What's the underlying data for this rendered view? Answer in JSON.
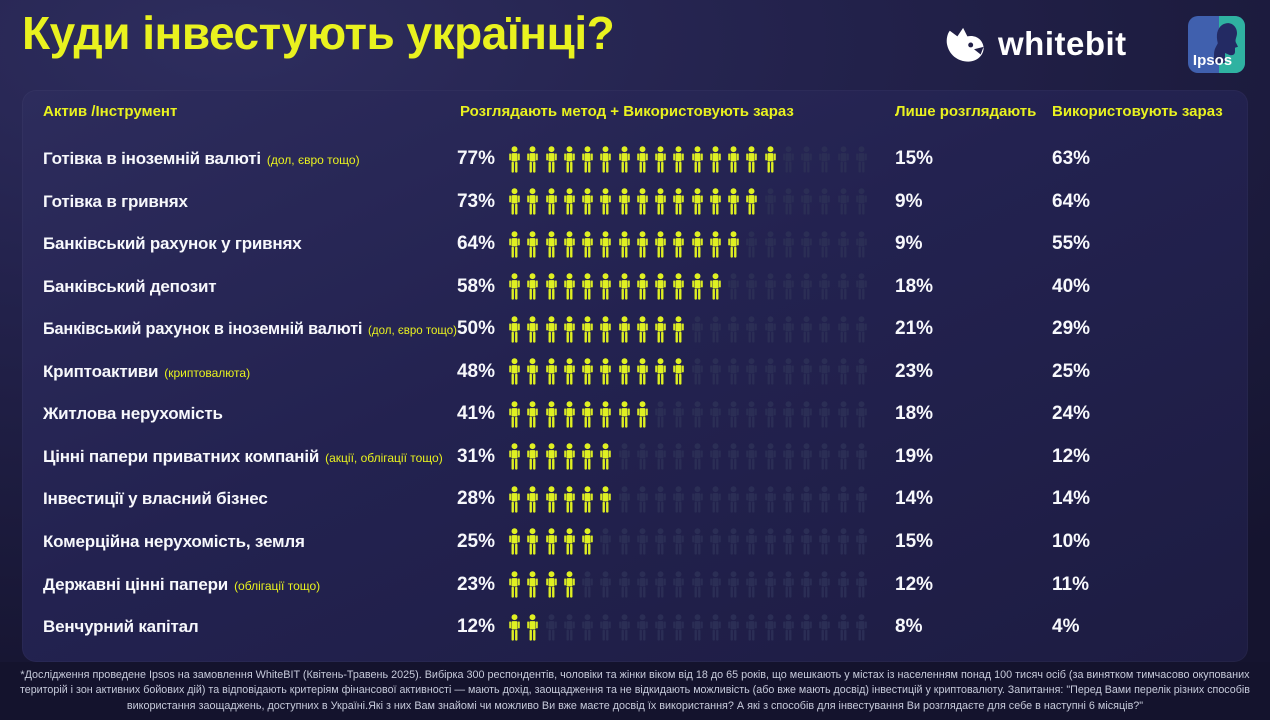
{
  "page": {
    "title": "Куди інвестують українці?"
  },
  "brand": {
    "whitebit_wordmark": "whitebit",
    "ipsos_wordmark": "Ipsos"
  },
  "table": {
    "headers": {
      "asset": "Актив /Інструмент",
      "combined": "Розглядають метод + Використовують зараз",
      "considering": "Лише розглядають",
      "using": "Використовують зараз"
    },
    "icons_total": 20,
    "rows": [
      {
        "label": "Готівка в іноземній валюті",
        "note": "(дол, євро тощо)",
        "combined": "77%",
        "filled": 15,
        "considering": "15%",
        "using": "63%"
      },
      {
        "label": "Готівка в гривнях",
        "note": "",
        "combined": "73%",
        "filled": 14,
        "considering": "9%",
        "using": "64%"
      },
      {
        "label": "Банківський рахунок у гривнях",
        "note": "",
        "combined": "64%",
        "filled": 13,
        "considering": "9%",
        "using": "55%"
      },
      {
        "label": "Банківський депозит",
        "note": "",
        "combined": "58%",
        "filled": 12,
        "considering": "18%",
        "using": "40%"
      },
      {
        "label": "Банківський рахунок в іноземній валюті",
        "note": "(дол, євро тощо)",
        "combined": "50%",
        "filled": 10,
        "considering": "21%",
        "using": "29%"
      },
      {
        "label": "Криптоактиви",
        "note": "(криптовалюта)",
        "combined": "48%",
        "filled": 10,
        "considering": "23%",
        "using": "25%"
      },
      {
        "label": "Житлова нерухомість",
        "note": "",
        "combined": "41%",
        "filled": 8,
        "considering": "18%",
        "using": "24%"
      },
      {
        "label": "Цінні папери приватних компаній",
        "note": "(акції, облігації тощо)",
        "combined": "31%",
        "filled": 6,
        "considering": "19%",
        "using": "12%"
      },
      {
        "label": "Інвестиції у власний бізнес",
        "note": "",
        "combined": "28%",
        "filled": 6,
        "considering": "14%",
        "using": "14%"
      },
      {
        "label": "Комерційна нерухомість, земля",
        "note": "",
        "combined": "25%",
        "filled": 5,
        "considering": "15%",
        "using": "10%"
      },
      {
        "label": "Державні цінні папери",
        "note": "(облігації тощо)",
        "combined": "23%",
        "filled": 4,
        "considering": "12%",
        "using": "11%"
      },
      {
        "label": "Венчурний капітал",
        "note": "",
        "combined": "12%",
        "filled": 2,
        "considering": "8%",
        "using": "4%"
      }
    ]
  },
  "footnote": {
    "lines": [
      "*Дослідження проведене Ipsos на замовлення WhiteBIT (Квітень-Травень 2025). Вибірка 300 респондентів, чоловіки та жінки віком від 18 до 65 років, що мешкають у містах із населенням понад 100 тисяч осіб (за винятком тимчасово окупованих",
      "територій і зон активних бойових дій) та відповідають критеріям фінансової активності — мають дохід, заощадження та не відкидають можливість (або вже мають досвід) інвестицій у криптовалюту. Запитання: \"Перед Вами перелік різних способів",
      "використання заощаджень, доступних в Україні.Які з них Вам знайомі чи можливо Ви вже маєте досвід їх використання? А які з способів для інвестування Ви розглядаєте для себе в наступні 6 місяців?\""
    ]
  },
  "colors": {
    "accent_yellow": "#e9f21f",
    "icon_filled": "#dff022",
    "icon_empty": "#2b2e55",
    "panel_bg": "#232250",
    "page_bg": "#1d1c42",
    "footer_bg": "#14132d",
    "ipsos_blue": "#4060ae",
    "ipsos_teal": "#2fb2a1",
    "text_white": "#f7f8fc"
  },
  "chart_data": {
    "type": "bar",
    "title": "Куди інвестують українці?",
    "unit": "%",
    "categories": [
      "Готівка в іноземній валюті (дол, євро тощо)",
      "Готівка в гривнях",
      "Банківський рахунок у гривнях",
      "Банківський депозит",
      "Банківський рахунок в іноземній валюті (дол, євро тощо)",
      "Криптоактиви (криптовалюта)",
      "Житлова нерухомість",
      "Цінні папери приватних компаній (акції, облігації тощо)",
      "Інвестиції у власний бізнес",
      "Комерційна нерухомість, земля",
      "Державні цінні папери (облігації тощо)",
      "Венчурний капітал"
    ],
    "series": [
      {
        "name": "Розглядають метод + Використовують зараз",
        "values": [
          77,
          73,
          64,
          58,
          50,
          48,
          41,
          31,
          28,
          25,
          23,
          12
        ]
      },
      {
        "name": "Лише розглядають",
        "values": [
          15,
          9,
          9,
          18,
          21,
          23,
          18,
          19,
          14,
          15,
          12,
          8
        ]
      },
      {
        "name": "Використовують зараз",
        "values": [
          63,
          64,
          55,
          40,
          29,
          25,
          24,
          12,
          14,
          10,
          11,
          4
        ]
      }
    ],
    "pictogram": {
      "icons_per_row": 20,
      "icon_value_pct": 5,
      "filled_counts": [
        15,
        14,
        13,
        12,
        10,
        10,
        8,
        6,
        6,
        5,
        4,
        2
      ]
    },
    "legend_position": "top",
    "grid": false,
    "xlim": [
      0,
      100
    ]
  }
}
